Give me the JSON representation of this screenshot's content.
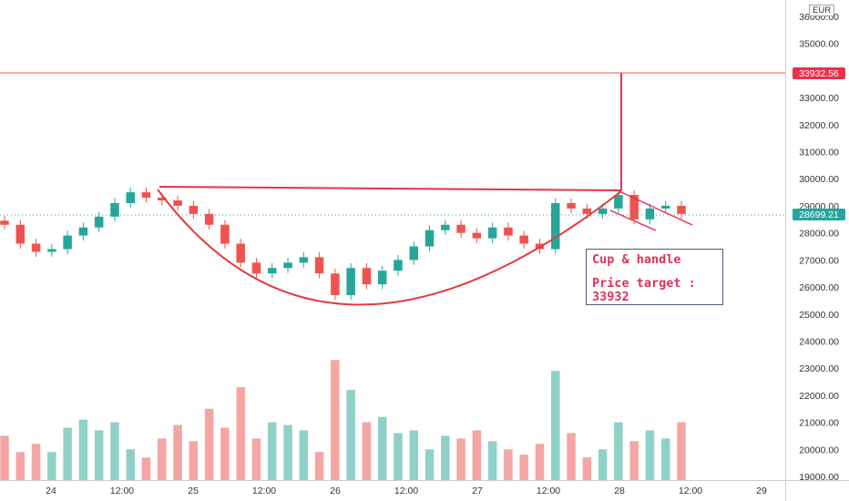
{
  "currency_label": "EUR",
  "colors": {
    "up": "#26a69a",
    "down": "#ef5350",
    "vol_up": "#8fd1c8",
    "vol_down": "#f5a5a3",
    "drawing": "#e8304f",
    "target_line": "#e85a5a",
    "price_badge": "#26a69a",
    "target_badge": "#e8304f"
  },
  "note": {
    "line1": "Cup & handle",
    "line2": "Price target :",
    "line3": "33932"
  },
  "price_axis": {
    "target_label": "33932.56",
    "last_label": "28699.21"
  },
  "chart_data": {
    "type": "candlestick",
    "x_ticks": [
      "24",
      "12:00",
      "25",
      "12:00",
      "26",
      "12:00",
      "27",
      "12:00",
      "28",
      "12:00",
      "29"
    ],
    "y_ticks": [
      "19000.00",
      "20000.00",
      "21000.00",
      "22000.00",
      "23000.00",
      "24000.00",
      "25000.00",
      "26000.00",
      "27000.00",
      "28000.00",
      "29000.00",
      "30000.00",
      "31000.00",
      "32000.00",
      "33000.00",
      "34000.00",
      "35000.00",
      "36000.00"
    ],
    "price_range": [
      19000,
      36000
    ],
    "target_price": 33932.56,
    "last_price": 28699.21,
    "price_estimated": [
      28300,
      27600,
      27300,
      27400,
      27900,
      28200,
      28600,
      29100,
      29500,
      29300,
      29200,
      29000,
      28700,
      28300,
      27600,
      26900,
      26500,
      26700,
      26900,
      27100,
      26500,
      25700,
      26700,
      26100,
      26600,
      27000,
      27500,
      28100,
      28300,
      28000,
      27800,
      28200,
      27900,
      27600,
      27400,
      29100,
      28900,
      28700,
      28900,
      29400,
      28500,
      28900,
      29000,
      28700
    ],
    "volume_estimated": [
      20500,
      19900,
      20200,
      19900,
      20800,
      21100,
      20700,
      21000,
      20000,
      19700,
      20400,
      20900,
      20300,
      21500,
      20800,
      22300,
      20400,
      21000,
      20900,
      20700,
      19900,
      23300,
      22200,
      21000,
      21200,
      20600,
      20700,
      20000,
      20500,
      20400,
      20700,
      20300,
      20000,
      19800,
      20200,
      22900,
      20600,
      19700,
      20000,
      21000,
      20300,
      20700,
      20400,
      21000
    ],
    "annotations": [
      "cup curve",
      "handle channel",
      "resistance line",
      "target projection"
    ]
  }
}
